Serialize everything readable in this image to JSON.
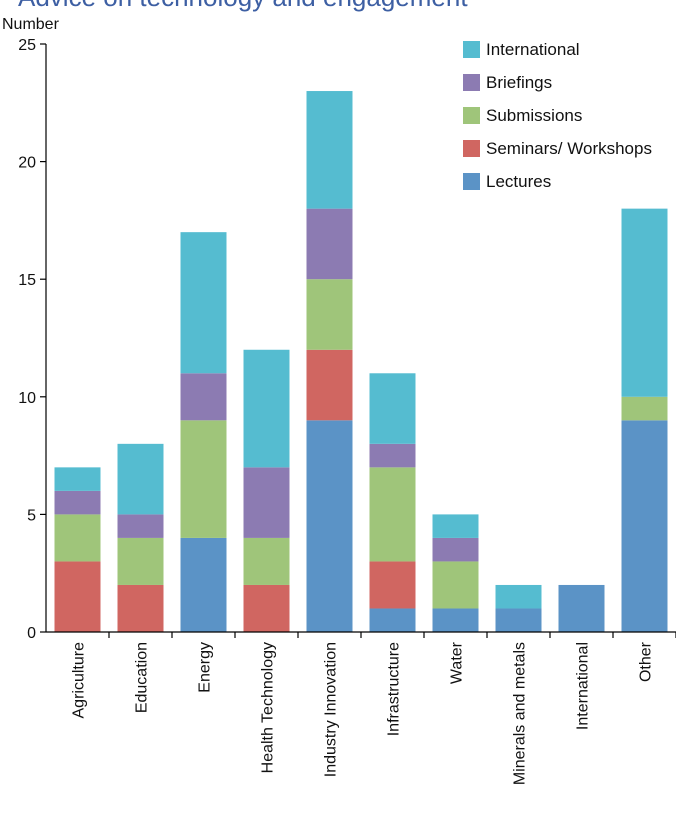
{
  "chart_data": {
    "type": "bar",
    "stacked": true,
    "title": "Advice on technology and engagement",
    "ylabel": "Number",
    "xlabel": "",
    "ylim": [
      0,
      25
    ],
    "yticks": [
      0,
      5,
      10,
      15,
      20,
      25
    ],
    "grid": false,
    "legend_position": "top-right",
    "categories": [
      "Agriculture",
      "Education",
      "Energy",
      "Health Technology",
      "Industry Innovation",
      "Infrastructure",
      "Water",
      "Minerals and metals",
      "International",
      "Other"
    ],
    "series": [
      {
        "name": "Lectures",
        "color": "#5b93c6",
        "values": [
          0,
          0,
          4,
          0,
          9,
          1,
          1,
          1,
          2,
          9
        ]
      },
      {
        "name": "Seminars/ Workshops",
        "color": "#d06661",
        "values": [
          3,
          2,
          0,
          2,
          3,
          2,
          0,
          0,
          0,
          0
        ]
      },
      {
        "name": "Submissions",
        "color": "#9fc57a",
        "values": [
          2,
          2,
          5,
          2,
          3,
          4,
          2,
          0,
          0,
          1
        ]
      },
      {
        "name": "Briefings",
        "color": "#8c7bb2",
        "values": [
          1,
          1,
          2,
          3,
          3,
          1,
          1,
          0,
          0,
          0
        ]
      },
      {
        "name": "International",
        "color": "#55bcd0",
        "values": [
          1,
          3,
          6,
          5,
          5,
          3,
          1,
          1,
          0,
          8
        ]
      }
    ],
    "legend_order": [
      "International",
      "Briefings",
      "Submissions",
      "Seminars/ Workshops",
      "Lectures"
    ]
  }
}
